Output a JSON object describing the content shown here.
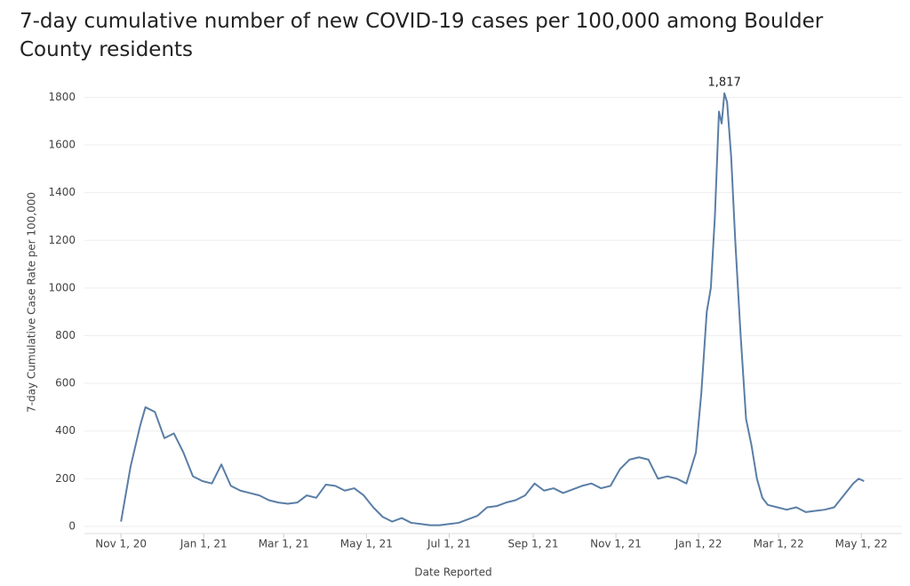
{
  "chart_data": {
    "type": "line",
    "title": "7-day cumulative number of new COVID-19 cases per 100,000 among Boulder County residents",
    "x_label": "Date Reported",
    "y_label": "7-day Cumulative Case Rate per 100,000",
    "x": [
      "2020-11-01",
      "2020-11-08",
      "2020-11-15",
      "2020-11-19",
      "2020-11-26",
      "2020-12-03",
      "2020-12-10",
      "2020-12-17",
      "2020-12-24",
      "2020-12-31",
      "2021-01-07",
      "2021-01-14",
      "2021-01-21",
      "2021-01-28",
      "2021-02-04",
      "2021-02-11",
      "2021-02-18",
      "2021-02-25",
      "2021-03-04",
      "2021-03-11",
      "2021-03-18",
      "2021-03-25",
      "2021-04-01",
      "2021-04-08",
      "2021-04-15",
      "2021-04-22",
      "2021-04-29",
      "2021-05-06",
      "2021-05-13",
      "2021-05-20",
      "2021-05-27",
      "2021-06-03",
      "2021-06-10",
      "2021-06-17",
      "2021-06-24",
      "2021-07-01",
      "2021-07-08",
      "2021-07-15",
      "2021-07-22",
      "2021-07-29",
      "2021-08-05",
      "2021-08-12",
      "2021-08-19",
      "2021-08-26",
      "2021-09-02",
      "2021-09-09",
      "2021-09-16",
      "2021-09-23",
      "2021-09-30",
      "2021-10-07",
      "2021-10-14",
      "2021-10-21",
      "2021-10-28",
      "2021-11-04",
      "2021-11-11",
      "2021-11-18",
      "2021-11-25",
      "2021-12-02",
      "2021-12-09",
      "2021-12-16",
      "2021-12-23",
      "2021-12-30",
      "2022-01-03",
      "2022-01-07",
      "2022-01-10",
      "2022-01-13",
      "2022-01-16",
      "2022-01-18",
      "2022-01-20",
      "2022-01-22",
      "2022-01-25",
      "2022-01-28",
      "2022-02-01",
      "2022-02-05",
      "2022-02-09",
      "2022-02-13",
      "2022-02-17",
      "2022-02-21",
      "2022-02-28",
      "2022-03-07",
      "2022-03-14",
      "2022-03-21",
      "2022-03-28",
      "2022-04-04",
      "2022-04-11",
      "2022-04-18",
      "2022-04-25",
      "2022-04-29",
      "2022-05-03"
    ],
    "series": [
      {
        "name": "7-day Cumulative Case Rate per 100,000",
        "color": "#5a7ea6",
        "values": [
          20,
          250,
          420,
          500,
          480,
          370,
          390,
          310,
          210,
          190,
          180,
          260,
          170,
          150,
          140,
          130,
          110,
          100,
          95,
          100,
          130,
          120,
          175,
          170,
          150,
          160,
          130,
          80,
          40,
          20,
          35,
          15,
          10,
          5,
          5,
          10,
          15,
          30,
          45,
          80,
          85,
          100,
          110,
          130,
          180,
          150,
          160,
          140,
          155,
          170,
          180,
          160,
          170,
          240,
          280,
          290,
          280,
          200,
          210,
          200,
          180,
          310,
          560,
          900,
          1000,
          1300,
          1740,
          1690,
          1817,
          1780,
          1550,
          1200,
          800,
          450,
          340,
          200,
          120,
          90,
          80,
          70,
          80,
          60,
          65,
          70,
          80,
          130,
          180,
          200,
          190
        ]
      }
    ],
    "annotations": [
      {
        "x": "2022-01-20",
        "y": 1817,
        "label": "1,817"
      }
    ],
    "xlim": [
      "2020-10-05",
      "2022-05-31"
    ],
    "xticks": [
      {
        "value": "2020-11-01",
        "label": "Nov 1, 20"
      },
      {
        "value": "2021-01-01",
        "label": "Jan 1, 21"
      },
      {
        "value": "2021-03-01",
        "label": "Mar 1, 21"
      },
      {
        "value": "2021-05-01",
        "label": "May 1, 21"
      },
      {
        "value": "2021-07-01",
        "label": "Jul 1, 21"
      },
      {
        "value": "2021-09-01",
        "label": "Sep 1, 21"
      },
      {
        "value": "2021-11-01",
        "label": "Nov 1, 21"
      },
      {
        "value": "2022-01-01",
        "label": "Jan 1, 22"
      },
      {
        "value": "2022-03-01",
        "label": "Mar 1, 22"
      },
      {
        "value": "2022-05-01",
        "label": "May 1, 22"
      }
    ],
    "ylim": [
      -30,
      1880
    ],
    "yticks": [
      0,
      200,
      400,
      600,
      800,
      1000,
      1200,
      1400,
      1600,
      1800
    ],
    "grid": true
  }
}
